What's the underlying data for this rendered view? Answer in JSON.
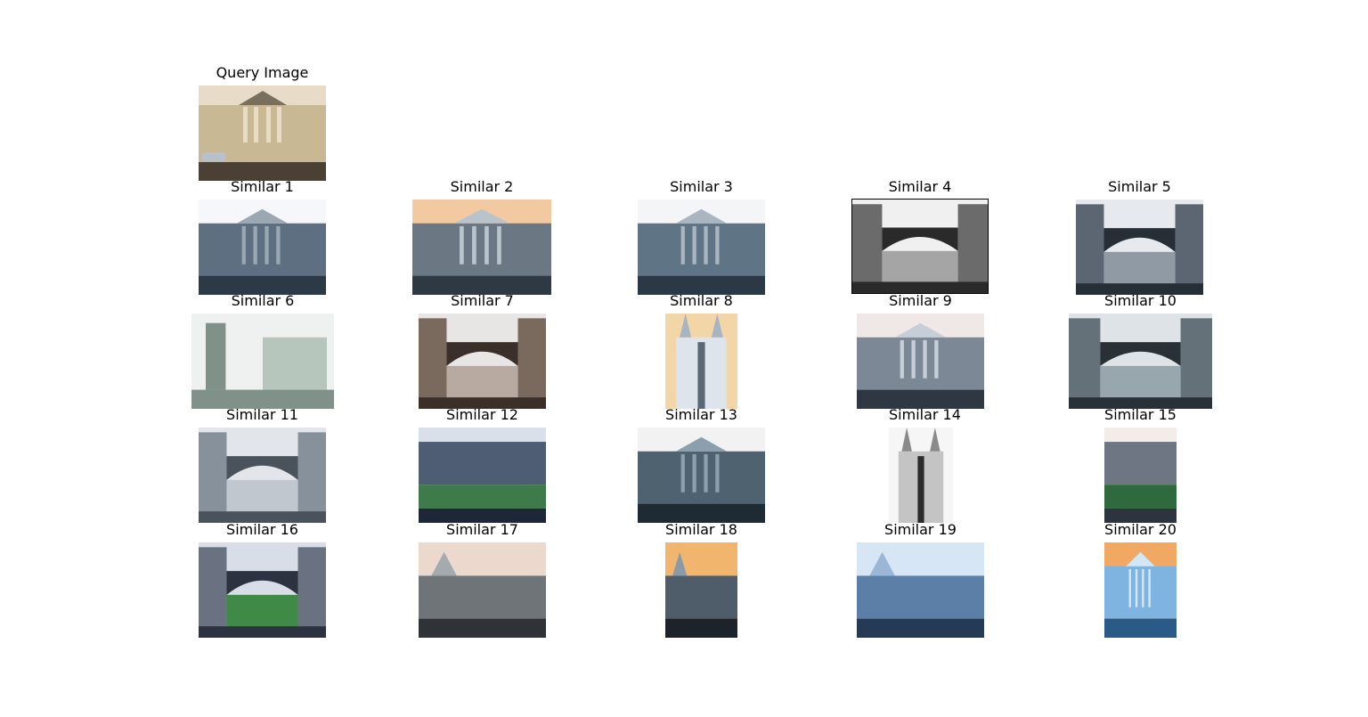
{
  "query": {
    "title": "Query Image",
    "palette": [
      "#e8dcc8",
      "#7a6e5c",
      "#4a4033",
      "#c9b894"
    ]
  },
  "results": [
    {
      "title": "Similar 1",
      "palette": [
        "#f5f7fa",
        "#5d6f80",
        "#2c3a47",
        "#9aa8b4"
      ]
    },
    {
      "title": "Similar 2",
      "palette": [
        "#f2c9a0",
        "#6c7784",
        "#2f3944",
        "#b8c3cc"
      ]
    },
    {
      "title": "Similar 3",
      "palette": [
        "#f4f5f7",
        "#5f7485",
        "#2b3946",
        "#a9b6c1"
      ]
    },
    {
      "title": "Similar 4",
      "palette": [
        "#f0f0f0",
        "#6b6b6b",
        "#2a2a2a",
        "#a5a5a5"
      ]
    },
    {
      "title": "Similar 5",
      "palette": [
        "#e6e9ee",
        "#5b6672",
        "#262e36",
        "#8f9aa5"
      ]
    },
    {
      "title": "Similar 6",
      "palette": [
        "#eef1ef",
        "#7f9189",
        "#3b4a44",
        "#b6c6bd"
      ]
    },
    {
      "title": "Similar 7",
      "palette": [
        "#e8e6e4",
        "#7a6a5e",
        "#3a2f29",
        "#b8aaa0"
      ]
    },
    {
      "title": "Similar 8",
      "palette": [
        "#f3d6a8",
        "#a7b4c4",
        "#5a6878",
        "#dde4ec"
      ]
    },
    {
      "title": "Similar 9",
      "palette": [
        "#f0e8e6",
        "#7d8897",
        "#2f3743",
        "#c6ced8"
      ]
    },
    {
      "title": "Similar 10",
      "palette": [
        "#dde3e6",
        "#647178",
        "#2a3136",
        "#98a6ad"
      ]
    },
    {
      "title": "Similar 11",
      "palette": [
        "#e2e5ea",
        "#87919c",
        "#4a525b",
        "#c0c7ce"
      ]
    },
    {
      "title": "Similar 12",
      "palette": [
        "#d9e0ea",
        "#4e5d74",
        "#1d2738",
        "#3f7a4a"
      ]
    },
    {
      "title": "Similar 13",
      "palette": [
        "#f2f2f2",
        "#4e6270",
        "#1f2b33",
        "#8aa0ae"
      ]
    },
    {
      "title": "Similar 14",
      "palette": [
        "#f6f6f6",
        "#8a8a8a",
        "#2b2b2b",
        "#c4c4c4"
      ]
    },
    {
      "title": "Similar 15",
      "palette": [
        "#f3ece8",
        "#6d7682",
        "#2d343d",
        "#2f6a3e"
      ]
    },
    {
      "title": "Similar 16",
      "palette": [
        "#d8dde8",
        "#6a7282",
        "#2c3240",
        "#3f8a46"
      ]
    },
    {
      "title": "Similar 17",
      "palette": [
        "#ead9cc",
        "#6e7478",
        "#2f3337",
        "#a4aaae"
      ]
    },
    {
      "title": "Similar 18",
      "palette": [
        "#f2b56e",
        "#4f5d6a",
        "#1c232b",
        "#8a9aa8"
      ]
    },
    {
      "title": "Similar 19",
      "palette": [
        "#d7e6f4",
        "#5c7fa7",
        "#243a55",
        "#9ab8d6"
      ]
    },
    {
      "title": "Similar 20",
      "palette": [
        "#f0a862",
        "#7fb4e0",
        "#2a5a86",
        "#d2e6f6"
      ]
    }
  ]
}
